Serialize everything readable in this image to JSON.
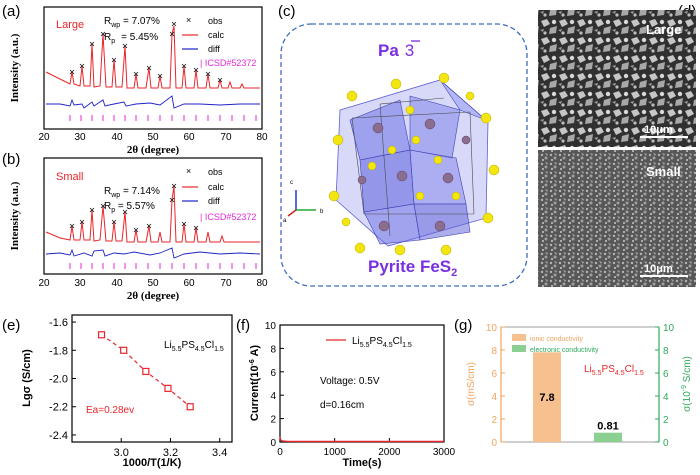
{
  "figure": {
    "panel_labels": [
      "(a)",
      "(b)",
      "(c)",
      "(d)",
      "(e)",
      "(f)",
      "(g)"
    ]
  },
  "panel_a": {
    "sample": "Large",
    "rwp_label": "R",
    "rwp_sub": "wp",
    "rwp_value": " = 7.07%",
    "rp_label": "R",
    "rp_sub": "p",
    "rp_value": "= 5.45%",
    "legend": [
      "obs",
      "calc",
      "diff",
      "ICSD#52372"
    ],
    "ylabel": "Intensity (a.u.)",
    "xlabel": "2θ (degree)",
    "xticks": [
      20,
      30,
      40,
      50,
      60,
      70,
      80
    ]
  },
  "panel_b": {
    "sample": "Small",
    "rwp_label": "R",
    "rwp_sub": "wp",
    "rwp_value": " = 7.14%",
    "rp_label": "R",
    "rp_sub": "p",
    "rp_value": " = 5.57%",
    "legend": [
      "obs",
      "calc",
      "diff",
      "ICSD#52372"
    ],
    "ylabel": "Intensity (a.u.)",
    "xlabel": "2θ (degree)",
    "xticks": [
      20,
      30,
      40,
      50,
      60,
      70,
      80
    ]
  },
  "panel_c": {
    "space_group": "Pa",
    "space_group_bar": "3",
    "structure_name": "Pyrite FeS",
    "structure_sub": "2",
    "axes": [
      "c",
      "a",
      "b"
    ]
  },
  "panel_d": {
    "top_label": "Large",
    "top_scale": "10μm",
    "bottom_label": "Small",
    "bottom_scale": "10μm"
  },
  "colors": {
    "red_text": "#e8262b",
    "blue_trace": "#1f22c8",
    "magenta_ticks": "#e62ad8",
    "crystal_blue": "#6f72e6",
    "sulfur_yellow": "#f3e610",
    "frame_dash": "#3d6cc0",
    "bar_orange": "#f6c18f",
    "bar_green": "#8bcf93",
    "axis_orange": "#f0a45f",
    "axis_green": "#2eaa5a"
  },
  "chart_data": [
    {
      "id": "e",
      "type": "scatter",
      "title": "",
      "legend": "Li5.5PS4.5Cl1.5",
      "annotation": "Ea=0.28ev",
      "xlabel": "1000/T(1/K)",
      "ylabel": "Lgσ (S/cm)",
      "x": [
        2.92,
        3.01,
        3.1,
        3.19,
        3.28
      ],
      "y": [
        -1.69,
        -1.8,
        -1.95,
        -2.07,
        -2.2
      ],
      "xlim": [
        2.8,
        3.45
      ],
      "ylim": [
        -2.45,
        -1.55
      ],
      "xticks": [
        "3.0",
        "3.2",
        "3.4"
      ],
      "xtick_values": [
        3.0,
        3.2,
        3.4
      ],
      "yticks": [
        "-1.6",
        "-1.8",
        "-2.0",
        "-2.2",
        "-2.4"
      ],
      "ytick_values": [
        -1.6,
        -1.8,
        -2.0,
        -2.2,
        -2.4
      ]
    },
    {
      "id": "f",
      "type": "line",
      "legend": "Li5.5PS4.5Cl1.5",
      "annotations": [
        "Voltage: 0.5V",
        "d=0.16cm"
      ],
      "xlabel": "Time(s)",
      "ylabel": "Current(10-6 A)",
      "x": [
        0,
        10,
        30,
        60,
        120,
        300,
        1000,
        2000,
        3000
      ],
      "y": [
        0.45,
        0.22,
        0.12,
        0.08,
        0.06,
        0.05,
        0.05,
        0.05,
        0.05
      ],
      "xlim": [
        0,
        3000
      ],
      "ylim": [
        0,
        10
      ],
      "xticks": [
        "0",
        "1000",
        "2000",
        "3000"
      ],
      "xtick_values": [
        0,
        1000,
        2000,
        3000
      ],
      "yticks": [
        "0",
        "2",
        "4",
        "6",
        "8",
        "10"
      ],
      "ytick_values": [
        0,
        2,
        4,
        6,
        8,
        10
      ]
    },
    {
      "id": "g",
      "type": "bar",
      "categories": [
        "ionic conductivity",
        "electronic conductivity"
      ],
      "values": [
        7.8,
        0.81
      ],
      "value_labels": [
        "7.8",
        "0.81"
      ],
      "legend": [
        "ionic conductivity",
        "electronic conductivity"
      ],
      "compound": "Li5.5PS4.5Cl1.5",
      "ylabel_left": "σ(mS/cm)",
      "ylabel_right": "σ(10-9 S/cm)",
      "ylim": [
        0,
        10
      ],
      "yticks": [
        "0",
        "2",
        "4",
        "6",
        "8",
        "10"
      ],
      "ytick_values": [
        0,
        2,
        4,
        6,
        8,
        10
      ]
    }
  ]
}
